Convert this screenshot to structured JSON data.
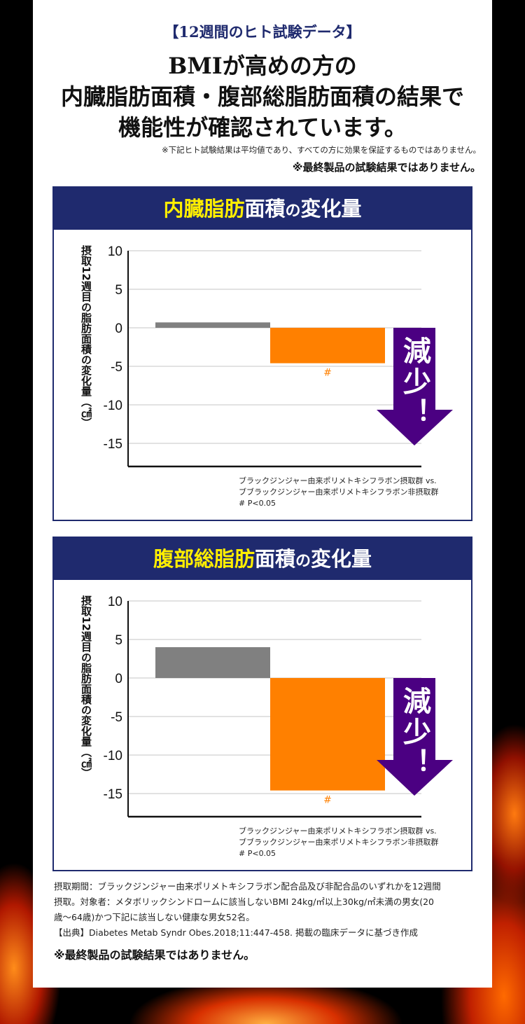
{
  "header": {
    "tag": "【12週間のヒト試験データ】",
    "headline": [
      "BMIが高めの方の",
      "内臓脂肪面積・腹部総脂肪面積の結果で",
      "機能性が確認されています。"
    ],
    "note_small": "※下記ヒト試験結果は平均値であり、すべての方に効果を保証するものではありません。",
    "note_bold": "※最終製品の試験結果ではありません。"
  },
  "colors": {
    "navy": "#1f2a6e",
    "highlight": "#ffee00",
    "gray_bar": "#808080",
    "orange_bar": "#ff8000",
    "arrow": "#4b0082"
  },
  "chart_data": [
    {
      "type": "bar",
      "title_hl": "内臓脂肪",
      "title_rest": "面積",
      "title_no": "の",
      "title_end": "変化量",
      "ylabel": "摂取12週目の脂肪面積の変化量（㎠）",
      "ylim": [
        -18,
        10
      ],
      "yticks": [
        10,
        5,
        0,
        -5,
        -10,
        -15
      ],
      "grid": true,
      "series": [
        {
          "values": [
            0.7
          ],
          "color": "#808080"
        },
        {
          "values": [
            -4.6
          ],
          "color": "#ff8000",
          "annotation": "#"
        }
      ],
      "arrow_label": "減少！",
      "legend": [
        "ブラックジンジャー由来ポリメトキシフラボン摂取群 vs.",
        "ブブラックジンジャー由来ポリメトキシフラボン非摂取群",
        "# P<0.05"
      ]
    },
    {
      "type": "bar",
      "title_hl": "腹部総脂肪",
      "title_rest": "面積",
      "title_no": "の",
      "title_end": "変化量",
      "ylabel": "摂取12週目の脂肪面積の変化量（㎠）",
      "ylim": [
        -18,
        10
      ],
      "yticks": [
        10,
        5,
        0,
        -5,
        -10,
        -15
      ],
      "grid": true,
      "series": [
        {
          "values": [
            4.0
          ],
          "color": "#808080"
        },
        {
          "values": [
            -14.6
          ],
          "color": "#ff8000",
          "annotation": "#"
        }
      ],
      "arrow_label": "減少！",
      "legend": [
        "ブラックジンジャー由来ポリメトキシフラボン摂取群 vs.",
        "ブブラックジンジャー由来ポリメトキシフラボン非摂取群",
        "# P<0.05"
      ]
    }
  ],
  "footer": {
    "lines": [
      "摂取期間：ブラックジンジャー由来ポリメトキシフラボン配合品及び非配合品のいずれかを12週間",
      "摂取。対象者：メタボリックシンドロームに該当しないBMI 24kg/㎡以上30kg/㎡未満の男女(20",
      "歳〜64歳)かつ下記に該当しない健康な男女52名。",
      "【出典】Diabetes Metab Syndr Obes.2018;11:447-458. 掲載の臨床データに基づき作成"
    ],
    "bold": "※最終製品の試験結果ではありません。"
  }
}
